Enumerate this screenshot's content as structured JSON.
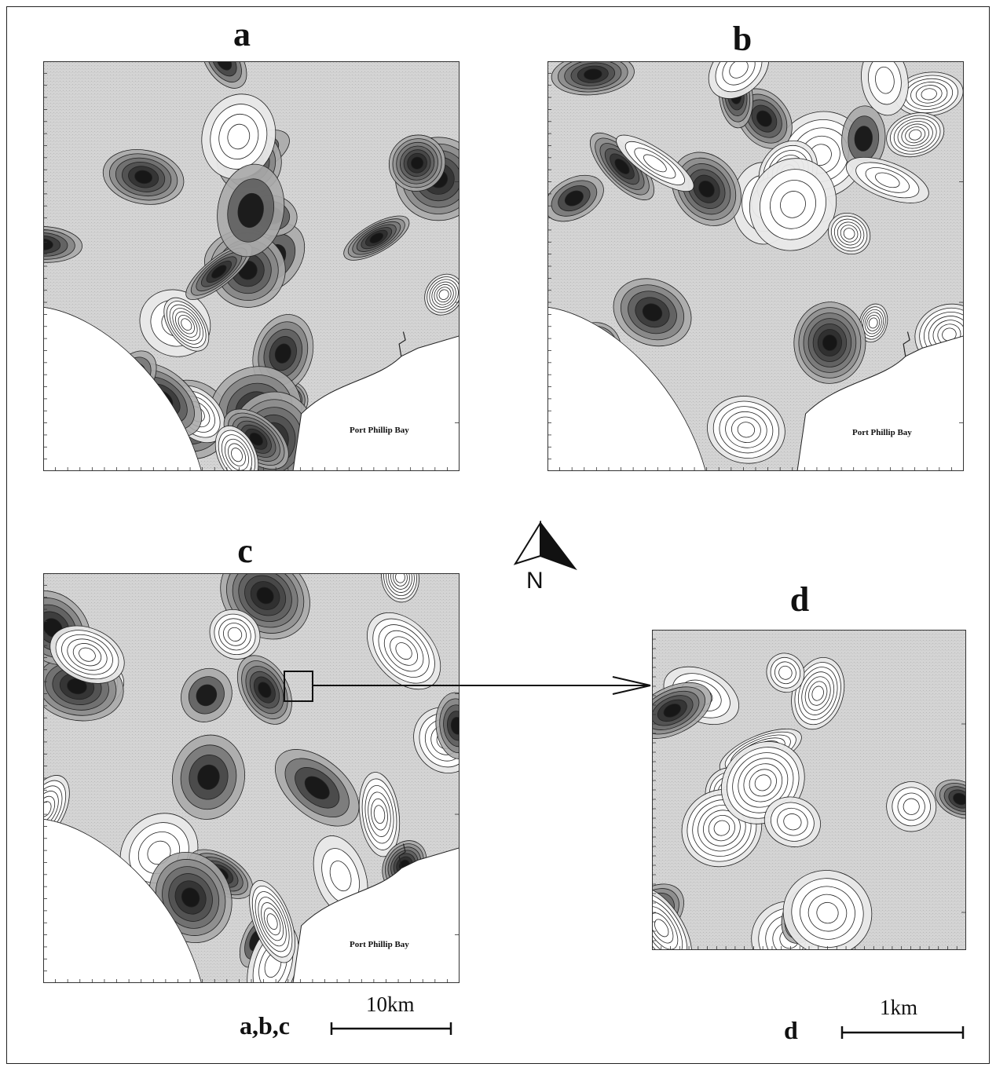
{
  "panels": [
    {
      "id": "a",
      "label": "a",
      "place_label": "Port Phillip Bay",
      "seed": 11,
      "shade_bias": 0.0,
      "has_coast": true
    },
    {
      "id": "b",
      "label": "b",
      "place_label": "Port Phillip Bay",
      "seed": 29,
      "shade_bias": 0.05,
      "has_coast": true
    },
    {
      "id": "c",
      "label": "c",
      "place_label": "Port Phillip Bay",
      "seed": 47,
      "shade_bias": 0.08,
      "has_coast": true
    },
    {
      "id": "d",
      "label": "d",
      "place_label": "",
      "seed": 83,
      "shade_bias": 0.0,
      "has_coast": false
    }
  ],
  "north_arrow": {
    "label": "N"
  },
  "scale_bars": [
    {
      "panels_label": "a,b,c",
      "distance_label": "10km"
    },
    {
      "panels_label": "d",
      "distance_label": "1km"
    }
  ],
  "colors": {
    "ink": "#111111",
    "white_zone": "#ffffff",
    "light_shade": "#d4d4d4",
    "mid_shade": "#a5a5a5",
    "dark_shade": "#555555",
    "darkest_shade": "#1e1e1e"
  }
}
